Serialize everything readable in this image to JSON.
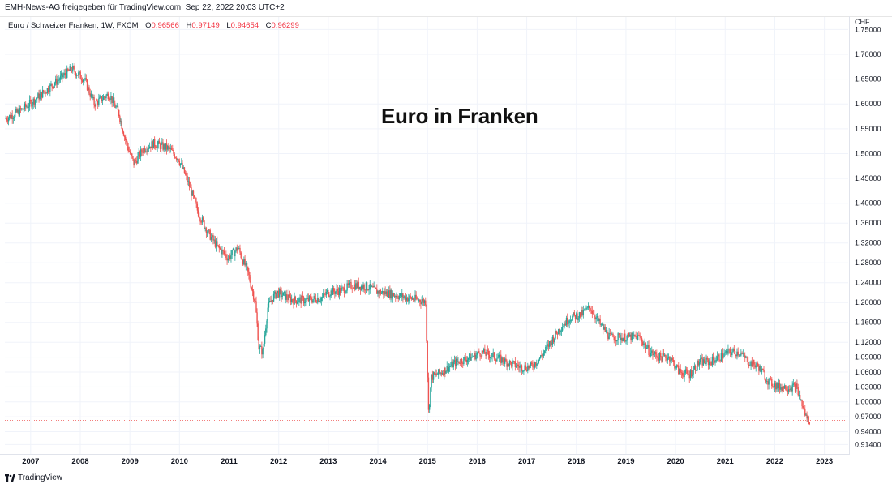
{
  "header": {
    "text": "EMH-News-AG freigegeben für TradingView.com, Sep 22, 2022 20:03 UTC+2"
  },
  "legend": {
    "symbol": "Euro / Schweizer Franken, 1W, FXCM",
    "o_label": "O",
    "o_value": "0.96566",
    "h_label": "H",
    "h_value": "0.97149",
    "l_label": "L",
    "l_value": "0.94654",
    "c_label": "C",
    "c_value": "0.96299"
  },
  "footer": {
    "brand": "TradingView"
  },
  "colors": {
    "up": "#26a69a",
    "down": "#ef5350",
    "grid": "#f0f3fa",
    "axis_text": "#131722"
  },
  "chart_data": {
    "type": "line",
    "title": "Euro in Franken",
    "y_unit": "CHF",
    "ylim": [
      0.895,
      1.775
    ],
    "xlim": [
      2006.5,
      2023.5
    ],
    "grid": true,
    "y_ticks": [
      "1.75000",
      "1.70000",
      "1.65000",
      "1.60000",
      "1.55000",
      "1.50000",
      "1.45000",
      "1.40000",
      "1.36000",
      "1.32000",
      "1.28000",
      "1.24000",
      "1.20000",
      "1.16000",
      "1.12000",
      "1.09000",
      "1.06000",
      "1.03000",
      "1.00000",
      "0.97000",
      "0.94000",
      "0.91400"
    ],
    "x_ticks": [
      "2007",
      "2008",
      "2009",
      "2010",
      "2011",
      "2012",
      "2013",
      "2014",
      "2015",
      "2016",
      "2017",
      "2018",
      "2019",
      "2020",
      "2021",
      "2022",
      "2023"
    ],
    "last_close": 0.96299,
    "series": [
      {
        "x": [
          2006.5,
          2006.8,
          2007.0,
          2007.3,
          2007.6,
          2007.85,
          2008.1,
          2008.3,
          2008.6,
          2008.8,
          2008.95,
          2009.1,
          2009.3,
          2009.5,
          2009.8,
          2010.0,
          2010.2,
          2010.4,
          2010.6,
          2010.8,
          2011.0,
          2011.2,
          2011.4,
          2011.55,
          2011.62,
          2011.7,
          2011.8,
          2011.9,
          2012.0,
          2012.3,
          2012.6,
          2012.9,
          2013.0,
          2013.3,
          2013.5,
          2013.8,
          2014.0,
          2014.3,
          2014.6,
          2014.98,
          2015.04,
          2015.1,
          2015.3,
          2015.6,
          2015.9,
          2016.1,
          2016.4,
          2016.6,
          2016.9,
          2017.1,
          2017.3,
          2017.5,
          2017.7,
          2017.9,
          2018.1,
          2018.3,
          2018.5,
          2018.7,
          2018.9,
          2019.1,
          2019.3,
          2019.5,
          2019.7,
          2019.9,
          2020.1,
          2020.3,
          2020.5,
          2020.7,
          2020.9,
          2021.1,
          2021.3,
          2021.5,
          2021.7,
          2021.9,
          2022.1,
          2022.3,
          2022.45,
          2022.55,
          2022.65,
          2022.72
        ],
        "y": [
          1.57,
          1.585,
          1.6,
          1.625,
          1.65,
          1.67,
          1.65,
          1.6,
          1.62,
          1.58,
          1.52,
          1.48,
          1.51,
          1.52,
          1.51,
          1.49,
          1.44,
          1.38,
          1.34,
          1.31,
          1.29,
          1.31,
          1.26,
          1.2,
          1.11,
          1.1,
          1.19,
          1.21,
          1.22,
          1.205,
          1.205,
          1.21,
          1.22,
          1.225,
          1.235,
          1.232,
          1.222,
          1.217,
          1.21,
          1.202,
          0.98,
          1.05,
          1.06,
          1.08,
          1.09,
          1.1,
          1.09,
          1.08,
          1.07,
          1.07,
          1.09,
          1.12,
          1.15,
          1.17,
          1.175,
          1.19,
          1.155,
          1.13,
          1.13,
          1.13,
          1.13,
          1.1,
          1.09,
          1.09,
          1.06,
          1.055,
          1.08,
          1.08,
          1.09,
          1.1,
          1.1,
          1.08,
          1.07,
          1.04,
          1.03,
          1.03,
          1.03,
          1.0,
          0.97,
          0.963
        ]
      }
    ]
  }
}
